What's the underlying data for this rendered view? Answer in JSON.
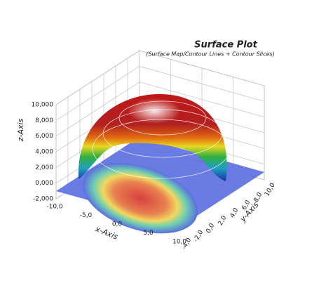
{
  "chart_data": {
    "type": "surface",
    "title": "Surface Plot",
    "subtitle": "(Surface Map/Contour Lines + Contour Slices)",
    "x_label": "x-Axis",
    "y_label": "y-Axis",
    "z_label": "z-Axis",
    "xlim": [
      -10,
      10
    ],
    "ylim": [
      -4,
      10
    ],
    "zlim": [
      -2,
      10
    ],
    "xticks": [
      {
        "value": -10,
        "label": "-10,0"
      },
      {
        "value": -5,
        "label": "-5,0"
      },
      {
        "value": 0,
        "label": "0,0"
      },
      {
        "value": 5,
        "label": "5,0"
      },
      {
        "value": 10,
        "label": "10,0"
      }
    ],
    "yticks": [
      {
        "value": -4,
        "label": "-4,0"
      },
      {
        "value": -2,
        "label": "-2,0"
      },
      {
        "value": 0,
        "label": "0,0"
      },
      {
        "value": 2,
        "label": "2,0"
      },
      {
        "value": 4,
        "label": "4,0"
      },
      {
        "value": 6,
        "label": "6,0"
      },
      {
        "value": 8,
        "label": "8,0"
      },
      {
        "value": 10,
        "label": "10,0"
      }
    ],
    "zticks": [
      {
        "value": -2,
        "label": "-2,000"
      },
      {
        "value": 0,
        "label": "0,000"
      },
      {
        "value": 2,
        "label": "2,000"
      },
      {
        "value": 4,
        "label": "4,000"
      },
      {
        "value": 6,
        "label": "6,000"
      },
      {
        "value": 8,
        "label": "8,000"
      },
      {
        "value": 10,
        "label": "10,000"
      }
    ],
    "grid": true
  }
}
